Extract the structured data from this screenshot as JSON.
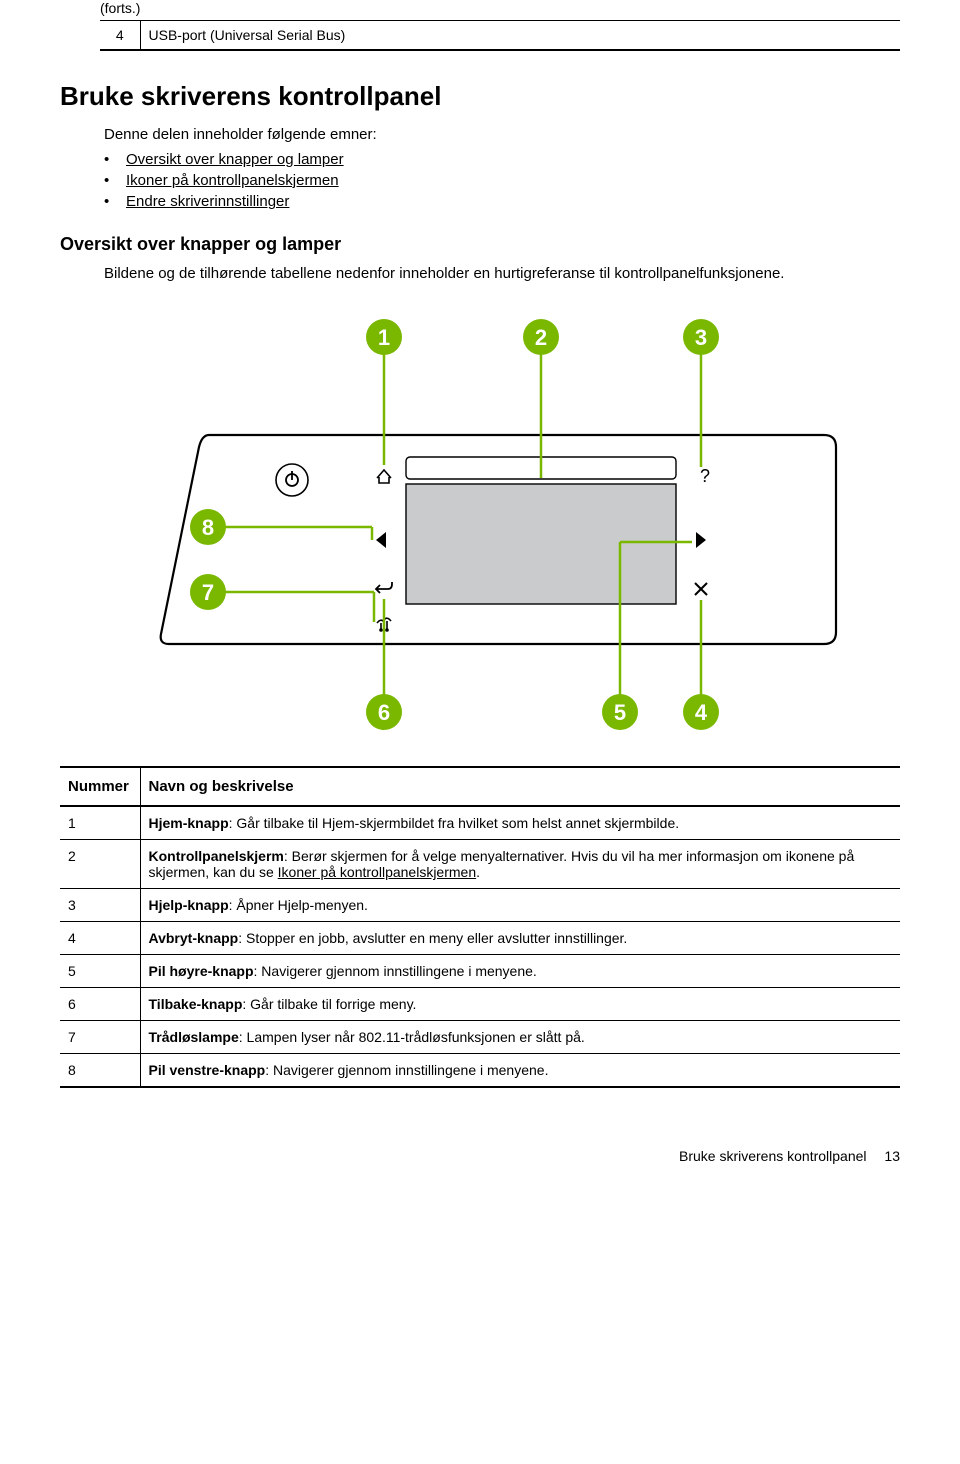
{
  "forts": "(forts.)",
  "usb_row": {
    "num": "4",
    "text": "USB-port (Universal Serial Bus)"
  },
  "h1": "Bruke skriverens kontrollpanel",
  "intro": "Denne delen inneholder følgende emner:",
  "links": [
    "Oversikt over knapper og lamper",
    "Ikoner på kontrollpanelskjermen",
    "Endre skriverinnstillinger"
  ],
  "h2": "Oversikt over knapper og lamper",
  "body": "Bildene og de tilhørende tabellene nedenfor inneholder en hurtigreferanse til kontrollpanelfunksjonene.",
  "diagram": {
    "callouts": [
      "1",
      "2",
      "3",
      "4",
      "5",
      "6",
      "7",
      "8"
    ],
    "callout_fill": "#7ab800",
    "callout_text": "#ffffff",
    "line_color": "#7ab800",
    "line_width": 2.5,
    "outline_color": "#000000",
    "outline_width": 2.2,
    "bg": "#ffffff",
    "screen_fill": "#c9cbcd"
  },
  "table": {
    "headers": [
      "Nummer",
      "Navn og beskrivelse"
    ],
    "rows": [
      {
        "n": "1",
        "bold": "Hjem-knapp",
        "rest": ": Går tilbake til Hjem-skjermbildet fra hvilket som helst annet skjermbilde."
      },
      {
        "n": "2",
        "bold": "Kontrollpanelskjerm",
        "rest": ": Berør skjermen for å velge menyalternativer. Hvis du vil ha mer informasjon om ikonene på skjermen, kan du se ",
        "link": "Ikoner på kontrollpanelskjermen",
        "tail": "."
      },
      {
        "n": "3",
        "bold": "Hjelp-knapp",
        "rest": ": Åpner Hjelp-menyen."
      },
      {
        "n": "4",
        "bold": "Avbryt-knapp",
        "rest": ": Stopper en jobb, avslutter en meny eller avslutter innstillinger."
      },
      {
        "n": "5",
        "bold": "Pil høyre-knapp",
        "rest": ": Navigerer gjennom innstillingene i menyene."
      },
      {
        "n": "6",
        "bold": "Tilbake-knapp",
        "rest": ": Går tilbake til forrige meny."
      },
      {
        "n": "7",
        "bold": "Trådløslampe",
        "rest": ": Lampen lyser når 802.11-trådløsfunksjonen er slått på."
      },
      {
        "n": "8",
        "bold": "Pil venstre-knapp",
        "rest": ": Navigerer gjennom innstillingene i menyene."
      }
    ]
  },
  "footer": {
    "title": "Bruke skriverens kontrollpanel",
    "page": "13"
  }
}
